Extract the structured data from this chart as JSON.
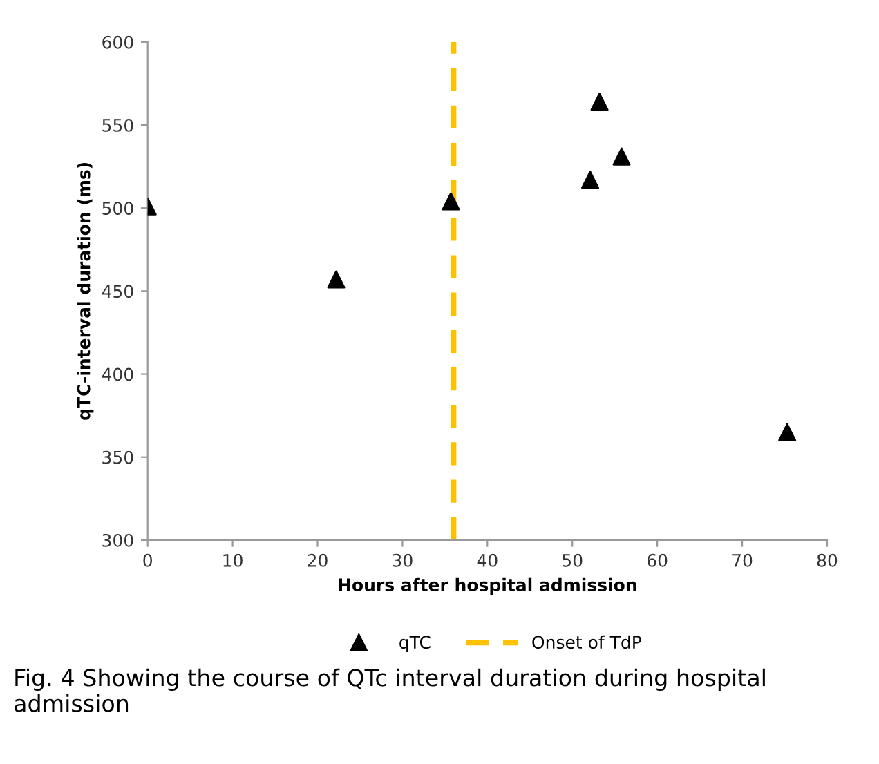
{
  "chart_data": {
    "type": "scatter",
    "xlabel": "Hours after hospital admission",
    "ylabel": "qTC-interval duration (ms)",
    "x": [
      0,
      22.2,
      35.7,
      52.1,
      53.2,
      55.8,
      75.3
    ],
    "series": [
      {
        "name": "qTC",
        "color": "#000000",
        "values": [
          501,
          457,
          504,
          517,
          564,
          531,
          365
        ]
      }
    ],
    "marker": "triangle",
    "xlim": [
      0,
      80
    ],
    "ylim": [
      300,
      600
    ],
    "xticks": [
      0,
      10,
      20,
      30,
      40,
      50,
      60,
      70,
      80
    ],
    "yticks": [
      300,
      350,
      400,
      450,
      500,
      550,
      600
    ],
    "ref_lines": [
      {
        "axis": "x",
        "value": 36,
        "label": "Onset of TdP",
        "color": "#ffc000",
        "line_style": "dashed"
      }
    ],
    "grid": false,
    "legend": "bottom",
    "annotations": [
      "Fig. 4 Showing the course of QTc interval duration during hospital admission"
    ]
  }
}
